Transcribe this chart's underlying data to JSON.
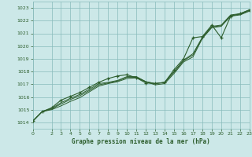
{
  "title": "Graphe pression niveau de la mer (hPa)",
  "bg_color": "#cce8e8",
  "grid_color": "#88bbbb",
  "line_color": "#2d5e2d",
  "xlim": [
    0,
    23
  ],
  "ylim": [
    1013.5,
    1023.5
  ],
  "yticks": [
    1014,
    1015,
    1016,
    1017,
    1018,
    1019,
    1020,
    1021,
    1022,
    1023
  ],
  "xticks": [
    0,
    2,
    3,
    4,
    5,
    6,
    7,
    8,
    9,
    10,
    11,
    12,
    13,
    14,
    15,
    16,
    17,
    18,
    19,
    20,
    21,
    22,
    23
  ],
  "series_tight": [
    [
      1014.1,
      1014.85,
      1015.0,
      1015.3,
      1015.65,
      1015.95,
      1016.4,
      1016.85,
      1017.05,
      1017.2,
      1017.45,
      1017.5,
      1017.2,
      1016.95,
      1017.05,
      1017.85,
      1018.75,
      1019.15,
      1020.6,
      1021.45,
      1021.55,
      1022.35,
      1022.45,
      1022.75
    ],
    [
      1014.1,
      1014.85,
      1015.05,
      1015.45,
      1015.8,
      1016.1,
      1016.5,
      1016.95,
      1017.1,
      1017.25,
      1017.55,
      1017.55,
      1017.2,
      1017.05,
      1017.15,
      1017.95,
      1018.85,
      1019.3,
      1020.65,
      1021.5,
      1021.6,
      1022.4,
      1022.5,
      1022.8
    ],
    [
      1014.1,
      1014.85,
      1015.1,
      1015.55,
      1015.9,
      1016.2,
      1016.6,
      1017.05,
      1017.15,
      1017.3,
      1017.6,
      1017.6,
      1017.2,
      1017.05,
      1017.15,
      1018.0,
      1018.9,
      1019.4,
      1020.7,
      1021.55,
      1021.65,
      1022.45,
      1022.55,
      1022.85
    ]
  ],
  "series_outlier": [
    1014.1,
    1014.85,
    1015.15,
    1015.75,
    1016.05,
    1016.35,
    1016.75,
    1017.15,
    1017.45,
    1017.65,
    1017.75,
    1017.5,
    1017.1,
    1017.05,
    1017.15,
    1018.15,
    1019.0,
    1020.65,
    1020.75,
    1021.65,
    1020.65,
    1022.35,
    1022.55,
    1022.85
  ]
}
